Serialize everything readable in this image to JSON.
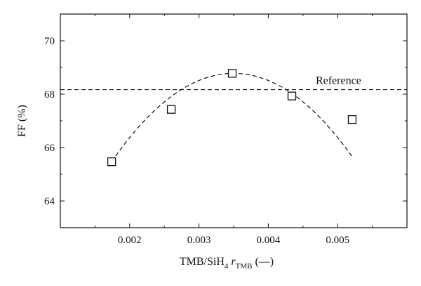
{
  "chart_data": {
    "type": "scatter",
    "xlabel_main": "TMB/SiH",
    "xlabel_sub1": "4",
    "xlabel_var": "r",
    "xlabel_sub2": "TMB",
    "xlabel_unit": "(—)",
    "ylabel": "FF (%)",
    "xlim": [
      0.001,
      0.006
    ],
    "ylim": [
      63,
      71
    ],
    "x_ticks": [
      0.002,
      0.003,
      0.004,
      0.005
    ],
    "x_tick_labels": [
      "0.002",
      "0.003",
      "0.004",
      "0.005"
    ],
    "y_ticks": [
      64,
      66,
      68,
      70
    ],
    "y_tick_labels": [
      "64",
      "66",
      "68",
      "70"
    ],
    "grid": false,
    "series": [
      {
        "marker": "open-square",
        "x": [
          0.00174,
          0.0026,
          0.00348,
          0.00434,
          0.00521
        ],
        "y": [
          65.47,
          67.43,
          68.78,
          67.93,
          67.05
        ]
      }
    ],
    "reference_line": {
      "y": 68.17,
      "label": "Reference",
      "style": "dashed"
    },
    "fit_curve": {
      "style": "dashed",
      "peak_x": 0.0035,
      "peak_y": 68.78
    }
  }
}
